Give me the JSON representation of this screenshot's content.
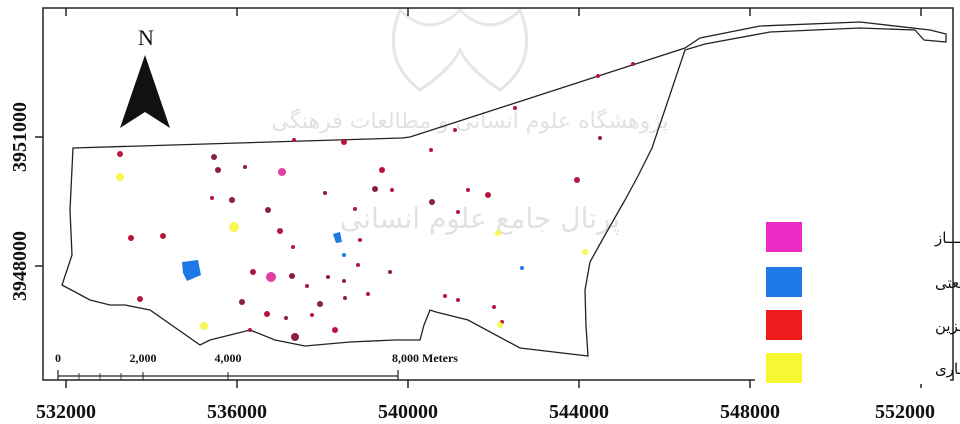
{
  "map": {
    "north_label": "N",
    "x_ticks": [
      "532000",
      "536000",
      "540000",
      "544000",
      "548000",
      "552000"
    ],
    "y_ticks": [
      "3951000",
      "3948000"
    ],
    "scale_labels": [
      "0",
      "2,000",
      "4,000",
      "8,000 Meters"
    ],
    "watermark_lines": [
      "پژوهشگاه علوم انسانی و مطالعات فرهنگی",
      "پرتال جامع علوم انسانی"
    ],
    "legend": [
      {
        "label": "محل ذخیره گـــــاز",
        "color": "#ee2ac4"
      },
      {
        "label": "صـــــنعتی",
        "color": "#1e78e6"
      },
      {
        "label": "پمـــپ بـــنزین",
        "color": "#ee1c1c"
      },
      {
        "label": "تجـاری",
        "color": "#f7f734"
      }
    ],
    "colors": {
      "boundary": "#222222",
      "pink_dot": "#e0409f",
      "red_dot": "#b5163e",
      "purple_dot": "#8a1d4a",
      "blue": "#1e78e6",
      "yellow": "#f7f734"
    }
  }
}
